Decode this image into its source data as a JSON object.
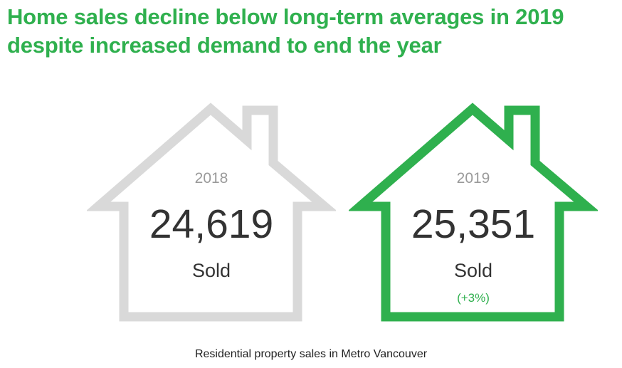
{
  "headline": "Home sales decline below long-term averages in 2019 despite increased demand to end the year",
  "colors": {
    "accent": "#2fb04e",
    "house_prior": "#d9d9d9",
    "house_current": "#2fb04e",
    "text_dark": "#333333",
    "text_muted": "#9a9a9a"
  },
  "houses": [
    {
      "year": "2018",
      "value": "24,619",
      "unit": "Sold",
      "change": ""
    },
    {
      "year": "2019",
      "value": "25,351",
      "unit": "Sold",
      "change": "(+3%)"
    }
  ],
  "caption": "Residential property sales in Metro Vancouver"
}
